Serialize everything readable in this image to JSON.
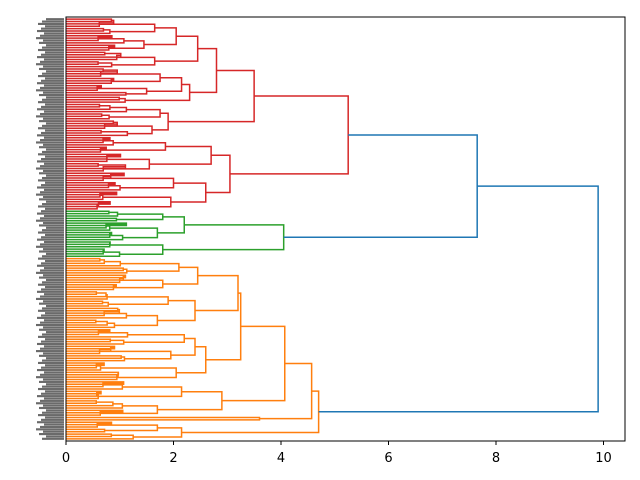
{
  "chart_data": {
    "type": "dendrogram",
    "orientation": "horizontal",
    "title": "",
    "xlabel": "",
    "ylabel": "",
    "xlim": [
      0,
      10.4
    ],
    "x_ticks": [
      0,
      2,
      4,
      6,
      8,
      10
    ],
    "x_tick_labels": [
      "0",
      "2",
      "4",
      "6",
      "8",
      "10"
    ],
    "colors": {
      "above_threshold": "#1f77b4",
      "cluster_1": "#d62728",
      "cluster_2": "#2ca02c",
      "cluster_3": "#ff7f0e"
    },
    "tree": {
      "h": 9.9,
      "c": "above_threshold",
      "children": [
        {
          "h": 7.65,
          "c": "above_threshold",
          "children": [
            {
              "h": 5.25,
              "c": "cluster_1",
              "children": [
                {
                  "h": 3.5,
                  "c": "cluster_1",
                  "children": [
                    {
                      "h": 2.8,
                      "c": "cluster_1",
                      "children": [
                        {
                          "h": 2.45,
                          "c": "cluster_1",
                          "children": [
                            {
                              "h": 2.05,
                              "c": "cluster_1",
                              "children": [
                                {
                                  "h": 1.65,
                                  "c": "cluster_1",
                                  "children": [
                                    {
                                      "n": 4
                                    },
                                    {
                                      "n": 3
                                    }
                                  ]
                                },
                                {
                                  "h": 1.45,
                                  "c": "cluster_1",
                                  "children": [
                                    {
                                      "n": 4
                                    },
                                    {
                                      "n": 3
                                    }
                                  ]
                                }
                              ]
                            },
                            {
                              "h": 1.65,
                              "c": "cluster_1",
                              "children": [
                                {
                                  "n": 4
                                },
                                {
                                  "n": 3
                                }
                              ]
                            }
                          ]
                        },
                        {
                          "h": 2.3,
                          "c": "cluster_1",
                          "children": [
                            {
                              "h": 2.15,
                              "c": "cluster_1",
                              "children": [
                                {
                                  "h": 1.75,
                                  "c": "cluster_1",
                                  "children": [
                                    {
                                      "n": 4
                                    },
                                    {
                                      "n": 3
                                    }
                                  ]
                                },
                                {
                                  "h": 1.5,
                                  "c": "cluster_1",
                                  "children": [
                                    {
                                      "n": 3
                                    },
                                    {
                                      "n": 2
                                    }
                                  ]
                                }
                              ]
                            },
                            {
                              "h": 1.1,
                              "c": "cluster_1",
                              "children": [
                                {
                                  "n": 2
                                },
                                {
                                  "n": 1
                                }
                              ]
                            }
                          ]
                        }
                      ]
                    },
                    {
                      "h": 1.9,
                      "c": "cluster_1",
                      "children": [
                        {
                          "h": 1.75,
                          "c": "cluster_1",
                          "children": [
                            {
                              "n": 4
                            },
                            {
                              "n": 3
                            }
                          ]
                        },
                        {
                          "h": 1.6,
                          "c": "cluster_1",
                          "children": [
                            {
                              "n": 4
                            },
                            {
                              "n": 3
                            }
                          ]
                        }
                      ]
                    }
                  ]
                },
                {
                  "h": 3.05,
                  "c": "cluster_1",
                  "children": [
                    {
                      "h": 2.7,
                      "c": "cluster_1",
                      "children": [
                        {
                          "h": 1.85,
                          "c": "cluster_1",
                          "children": [
                            {
                              "n": 4
                            },
                            {
                              "n": 3
                            }
                          ]
                        },
                        {
                          "h": 1.55,
                          "c": "cluster_1",
                          "children": [
                            {
                              "n": 4
                            },
                            {
                              "n": 4
                            }
                          ]
                        }
                      ]
                    },
                    {
                      "h": 2.6,
                      "c": "cluster_1",
                      "children": [
                        {
                          "h": 2.0,
                          "c": "cluster_1",
                          "children": [
                            {
                              "n": 4
                            },
                            {
                              "n": 4
                            }
                          ]
                        },
                        {
                          "h": 1.95,
                          "c": "cluster_1",
                          "children": [
                            {
                              "n": 4
                            },
                            {
                              "n": 4
                            }
                          ]
                        }
                      ]
                    }
                  ]
                }
              ]
            },
            {
              "h": 4.05,
              "c": "cluster_2",
              "children": [
                {
                  "h": 2.2,
                  "c": "cluster_2",
                  "children": [
                    {
                      "h": 1.8,
                      "c": "cluster_2",
                      "children": [
                        {
                          "n": 3
                        },
                        {
                          "n": 2
                        }
                      ]
                    },
                    {
                      "h": 1.7,
                      "c": "cluster_2",
                      "children": [
                        {
                          "n": 4
                        },
                        {
                          "n": 4
                        }
                      ]
                    }
                  ]
                },
                {
                  "h": 1.8,
                  "c": "cluster_2",
                  "children": [
                    {
                      "n": 3
                    },
                    {
                      "n": 4
                    }
                  ]
                }
              ]
            }
          ]
        },
        {
          "h": 4.7,
          "c": "cluster_3",
          "children": [
            {
              "h": 4.57,
              "c": "cluster_3",
              "children": [
                {
                  "h": 4.07,
                  "c": "cluster_3",
                  "children": [
                    {
                      "h": 3.25,
                      "c": "cluster_3",
                      "children": [
                        {
                          "h": 3.2,
                          "c": "cluster_3",
                          "children": [
                            {
                              "h": 2.45,
                              "c": "cluster_3",
                              "children": [
                                {
                                  "h": 2.1,
                                  "c": "cluster_3",
                                  "children": [
                                    {
                                      "n": 4
                                    },
                                    {
                                      "n": 3
                                    }
                                  ]
                                },
                                {
                                  "h": 1.8,
                                  "c": "cluster_3",
                                  "children": [
                                    {
                                      "n": 4
                                    },
                                    {
                                      "n": 3
                                    }
                                  ]
                                }
                              ]
                            },
                            {
                              "h": 2.4,
                              "c": "cluster_3",
                              "children": [
                                {
                                  "h": 1.9,
                                  "c": "cluster_3",
                                  "children": [
                                    {
                                      "n": 4
                                    },
                                    {
                                      "n": 3
                                    }
                                  ]
                                },
                                {
                                  "h": 1.7,
                                  "c": "cluster_3",
                                  "children": [
                                    {
                                      "n": 5
                                    },
                                    {
                                      "n": 4
                                    }
                                  ]
                                }
                              ]
                            }
                          ]
                        },
                        {
                          "h": 2.6,
                          "c": "cluster_3",
                          "children": [
                            {
                              "h": 2.4,
                              "c": "cluster_3",
                              "children": [
                                {
                                  "h": 2.2,
                                  "c": "cluster_3",
                                  "children": [
                                    {
                                      "n": 4
                                    },
                                    {
                                      "n": 3
                                    }
                                  ]
                                },
                                {
                                  "h": 1.95,
                                  "c": "cluster_3",
                                  "children": [
                                    {
                                      "n": 4
                                    },
                                    {
                                      "n": 3
                                    }
                                  ]
                                }
                              ]
                            },
                            {
                              "h": 2.05,
                              "c": "cluster_3",
                              "children": [
                                {
                                  "n": 4
                                },
                                {
                                  "n": 4
                                }
                              ]
                            }
                          ]
                        }
                      ]
                    },
                    {
                      "h": 2.9,
                      "c": "cluster_3",
                      "children": [
                        {
                          "h": 2.15,
                          "c": "cluster_3",
                          "children": [
                            {
                              "n": 4
                            },
                            {
                              "n": 4
                            }
                          ]
                        },
                        {
                          "h": 1.7,
                          "c": "cluster_3",
                          "children": [
                            {
                              "n": 4
                            },
                            {
                              "n": 3
                            }
                          ]
                        }
                      ]
                    }
                  ]
                },
                {
                  "h": 3.6,
                  "c": "cluster_3",
                  "children": [
                    {
                      "n": 1
                    },
                    {
                      "n": 1
                    }
                  ]
                }
              ]
            },
            {
              "h": 2.15,
              "c": "cluster_3",
              "children": [
                {
                  "h": 1.7,
                  "c": "cluster_3",
                  "children": [
                    {
                      "n": 3
                    },
                    {
                      "n": 2
                    }
                  ]
                },
                {
                  "h": 1.25,
                  "c": "cluster_3",
                  "children": [
                    {
                      "n": 2
                    },
                    {
                      "n": 1
                    }
                  ]
                }
              ]
            }
          ]
        }
      ]
    }
  }
}
